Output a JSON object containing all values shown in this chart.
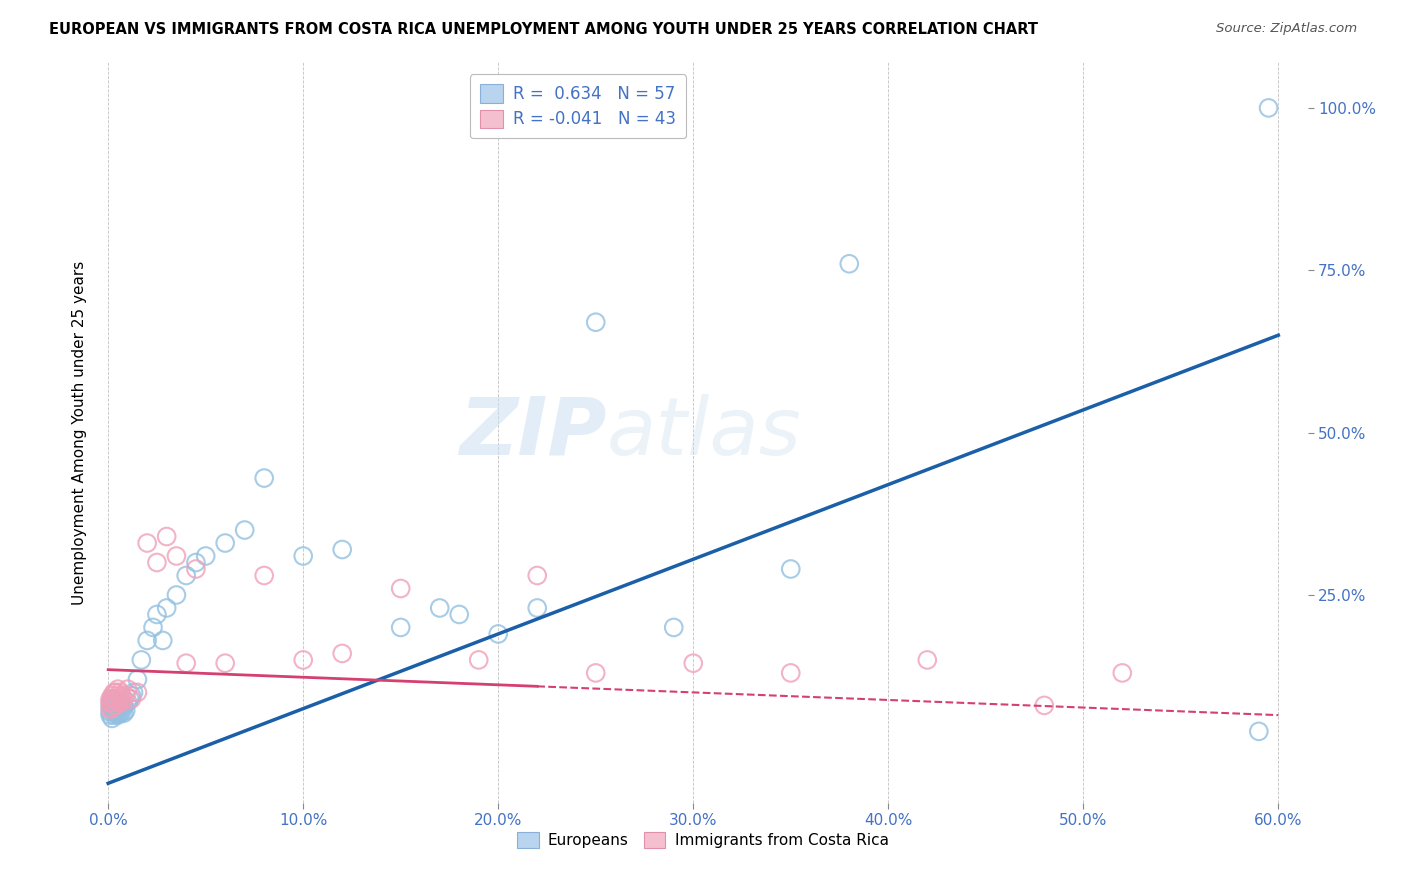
{
  "title": "EUROPEAN VS IMMIGRANTS FROM COSTA RICA UNEMPLOYMENT AMONG YOUTH UNDER 25 YEARS CORRELATION CHART",
  "source": "Source: ZipAtlas.com",
  "ylabel": "Unemployment Among Youth under 25 years",
  "xlabel_ticks": [
    "0.0%",
    "10.0%",
    "20.0%",
    "30.0%",
    "40.0%",
    "50.0%",
    "60.0%"
  ],
  "xlabel_vals": [
    0.0,
    0.1,
    0.2,
    0.3,
    0.4,
    0.5,
    0.6
  ],
  "ylabel_ticks": [
    "100.0%",
    "75.0%",
    "50.0%",
    "25.0%"
  ],
  "ylabel_vals": [
    1.0,
    0.75,
    0.5,
    0.25
  ],
  "xlim": [
    -0.005,
    0.615
  ],
  "ylim": [
    -0.07,
    1.07
  ],
  "blue_color": "#92c0e0",
  "pink_color": "#f0a0b8",
  "blue_line_color": "#1a5fa8",
  "pink_line_color": "#d44070",
  "watermark_1": "ZIP",
  "watermark_2": "atlas",
  "blue_r": 0.634,
  "blue_n": 57,
  "pink_r": -0.041,
  "pink_n": 43,
  "blue_points_x": [
    0.001,
    0.001,
    0.001,
    0.002,
    0.002,
    0.002,
    0.002,
    0.003,
    0.003,
    0.003,
    0.003,
    0.004,
    0.004,
    0.004,
    0.004,
    0.005,
    0.005,
    0.005,
    0.006,
    0.006,
    0.006,
    0.007,
    0.007,
    0.008,
    0.008,
    0.009,
    0.01,
    0.011,
    0.012,
    0.013,
    0.015,
    0.017,
    0.02,
    0.023,
    0.025,
    0.028,
    0.03,
    0.035,
    0.04,
    0.045,
    0.05,
    0.06,
    0.07,
    0.08,
    0.1,
    0.12,
    0.15,
    0.17,
    0.18,
    0.2,
    0.22,
    0.25,
    0.29,
    0.35,
    0.38,
    0.59,
    0.595
  ],
  "blue_points_y": [
    0.065,
    0.07,
    0.08,
    0.06,
    0.075,
    0.08,
    0.09,
    0.065,
    0.07,
    0.075,
    0.085,
    0.068,
    0.072,
    0.078,
    0.085,
    0.065,
    0.07,
    0.08,
    0.068,
    0.075,
    0.085,
    0.07,
    0.08,
    0.068,
    0.078,
    0.072,
    0.085,
    0.09,
    0.095,
    0.1,
    0.12,
    0.15,
    0.18,
    0.2,
    0.22,
    0.18,
    0.23,
    0.25,
    0.28,
    0.3,
    0.31,
    0.33,
    0.35,
    0.43,
    0.31,
    0.32,
    0.2,
    0.23,
    0.22,
    0.19,
    0.23,
    0.67,
    0.2,
    0.29,
    0.76,
    0.04,
    1.0
  ],
  "pink_points_x": [
    0.001,
    0.001,
    0.001,
    0.002,
    0.002,
    0.002,
    0.003,
    0.003,
    0.003,
    0.004,
    0.004,
    0.004,
    0.005,
    0.005,
    0.005,
    0.006,
    0.006,
    0.007,
    0.007,
    0.008,
    0.009,
    0.01,
    0.012,
    0.015,
    0.02,
    0.025,
    0.03,
    0.035,
    0.04,
    0.045,
    0.06,
    0.08,
    0.1,
    0.12,
    0.15,
    0.19,
    0.22,
    0.25,
    0.3,
    0.35,
    0.42,
    0.48,
    0.52
  ],
  "pink_points_y": [
    0.075,
    0.085,
    0.09,
    0.075,
    0.085,
    0.095,
    0.08,
    0.09,
    0.1,
    0.08,
    0.09,
    0.1,
    0.085,
    0.095,
    0.105,
    0.09,
    0.1,
    0.085,
    0.095,
    0.09,
    0.095,
    0.105,
    0.09,
    0.1,
    0.33,
    0.3,
    0.34,
    0.31,
    0.145,
    0.29,
    0.145,
    0.28,
    0.15,
    0.16,
    0.26,
    0.15,
    0.28,
    0.13,
    0.145,
    0.13,
    0.15,
    0.08,
    0.13
  ]
}
